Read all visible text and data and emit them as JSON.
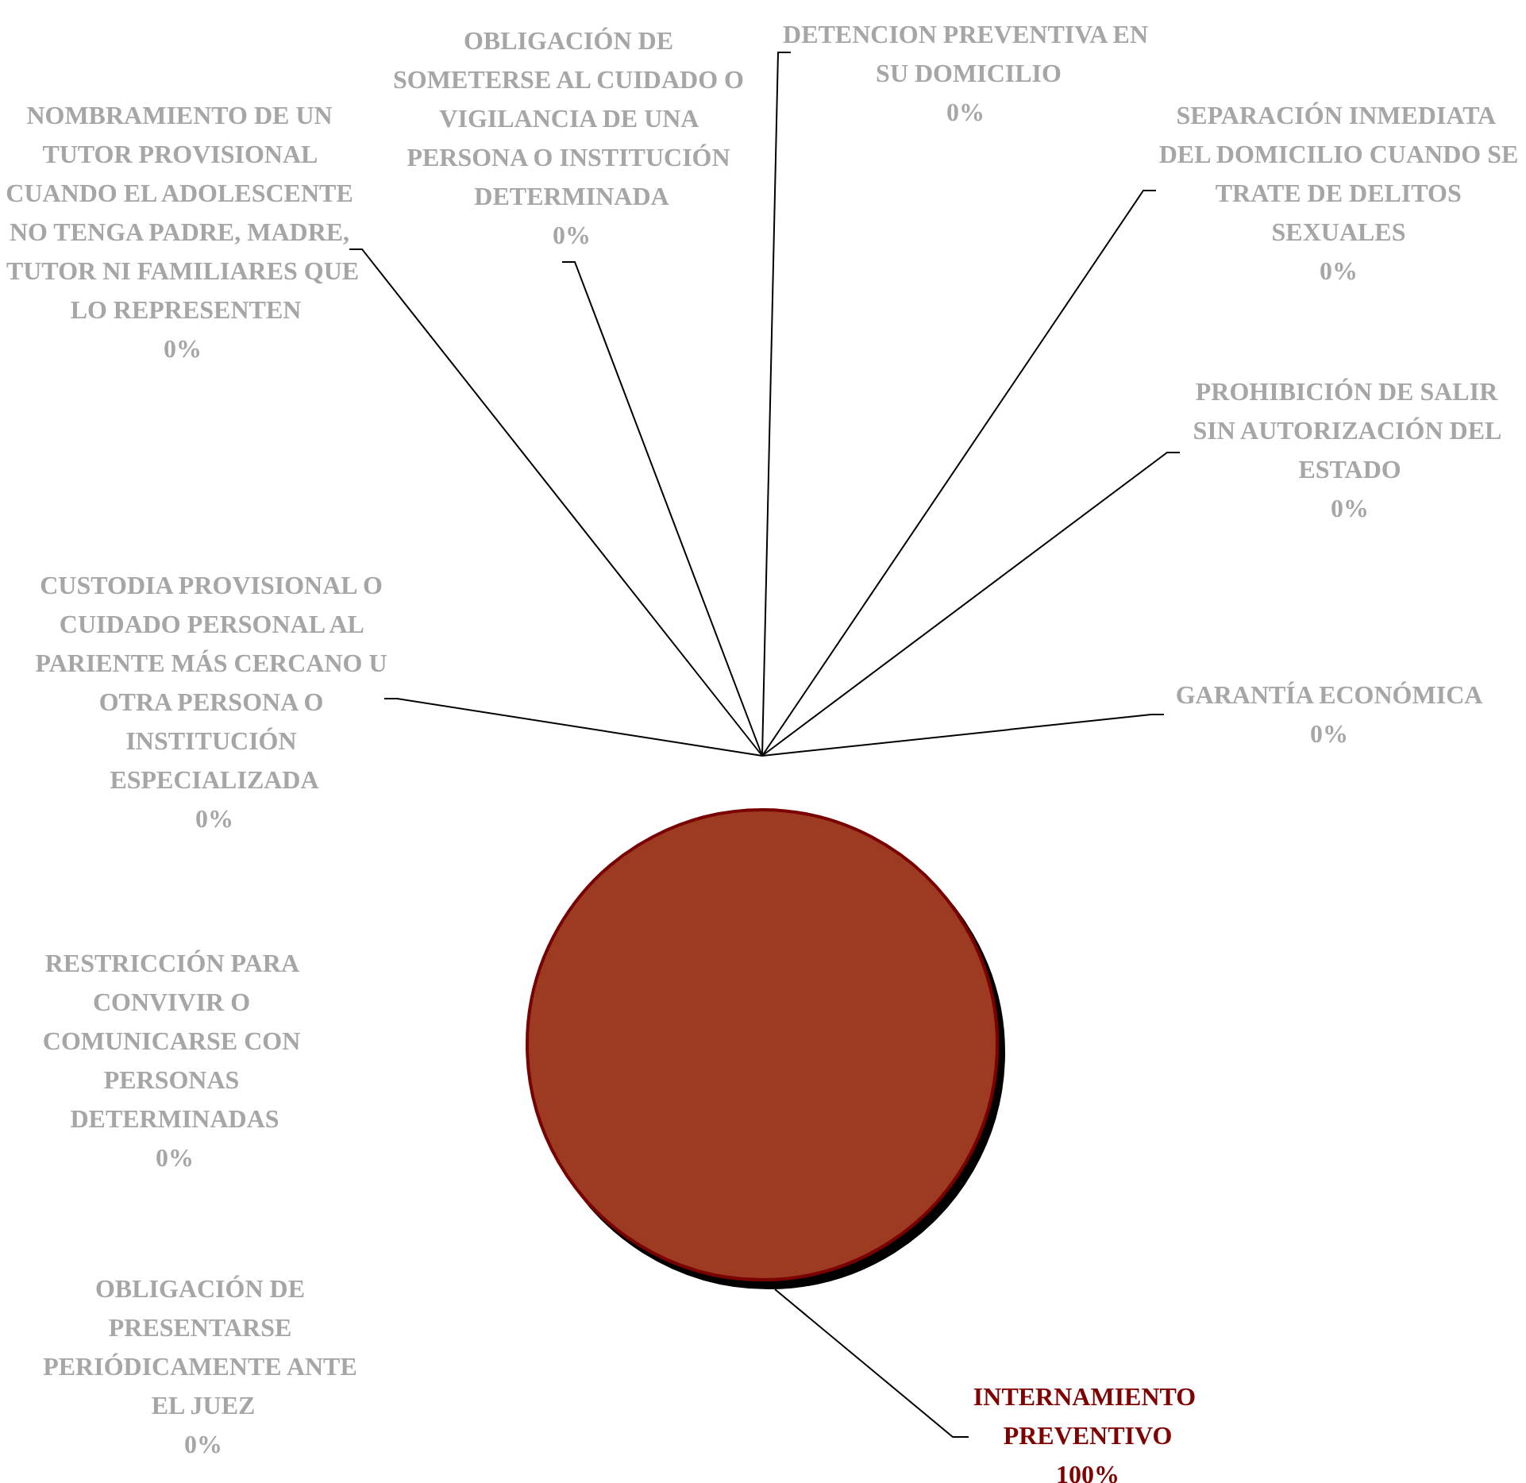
{
  "chart_data": {
    "type": "pie",
    "categories": [
      "INTERNAMIENTO PREVENTIVO",
      "OBLIGACIÓN DE PRESENTARSE PERIÓDICAMENTE ANTE EL JUEZ",
      "RESTRICCIÓN PARA CONVIVIR O COMUNICARSE CON PERSONAS DETERMINADAS",
      "CUSTODIA PROVISIONAL O CUIDADO PERSONAL AL PARIENTE MÁS CERCANO U OTRA PERSONA O INSTITUCIÓN ESPECIALIZADA",
      "NOMBRAMIENTO DE UN TUTOR PROVISIONAL CUANDO EL ADOLESCENTE NO TENGA PADRE, MADRE, TUTOR NI FAMILIARES QUE LO REPRESENTEN",
      "OBLIGACIÓN DE SOMETERSE AL CUIDADO O VIGILANCIA DE UNA PERSONA O INSTITUCIÓN DETERMINADA",
      "DETENCION PREVENTIVA EN SU DOMICILIO",
      "SEPARACIÓN INMEDIATA DEL DOMICILIO CUANDO SE TRATE DE DELITOS SEXUALES",
      "PROHIBICIÓN DE SALIR SIN AUTORIZACIÓN DEL ESTADO",
      "GARANTÍA ECONÓMICA"
    ],
    "values": [
      100,
      0,
      0,
      0,
      0,
      0,
      0,
      0,
      0,
      0
    ],
    "value_labels": [
      "100%",
      "0%",
      "0%",
      "0%",
      "0%",
      "0%",
      "0%",
      "0%",
      "0%",
      "0%"
    ],
    "colors": [
      "#9c3a20",
      "#9c3a20",
      "#9c3a20",
      "#9c3a20",
      "#9c3a20",
      "#9c3a20",
      "#9c3a20",
      "#9c3a20",
      "#9c3a20",
      "#9c3a20"
    ]
  }
}
